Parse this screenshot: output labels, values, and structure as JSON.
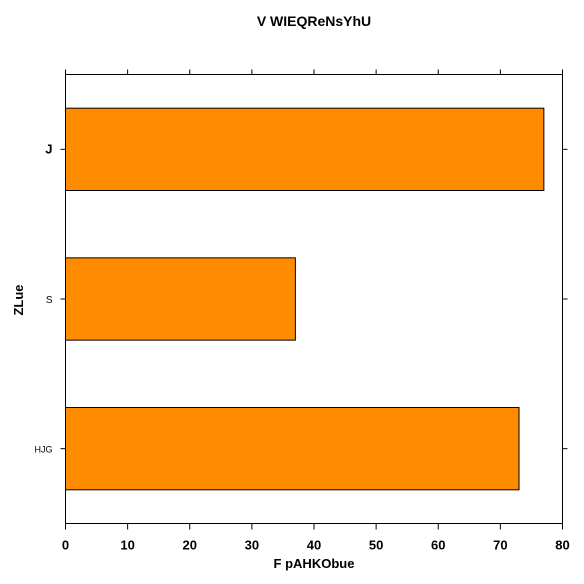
{
  "chart_data": {
    "type": "bar",
    "orientation": "horizontal",
    "title": "V WIEQReNsYhU",
    "xlabel": "F pAHKObue",
    "ylabel": "ZLue",
    "categories": [
      "J",
      "S",
      "HJG"
    ],
    "values": [
      77,
      37,
      73
    ],
    "xlim": [
      0,
      80
    ],
    "xticks": [
      "0",
      "10",
      "20",
      "30",
      "40",
      "50",
      "60",
      "70",
      "80"
    ],
    "bar_color": "#ff8c00",
    "edge_color": "#000000",
    "grid": false
  }
}
